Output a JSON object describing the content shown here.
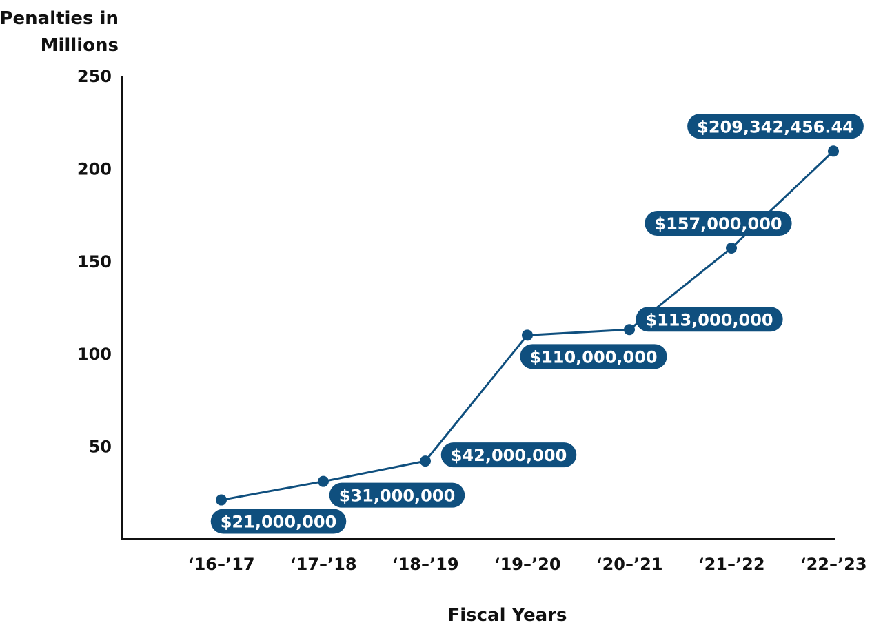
{
  "chart_data": {
    "type": "line",
    "ylabel": [
      "Penalties in",
      "Millions"
    ],
    "xlabel": "Fiscal Years",
    "categories": [
      "‘16–’17",
      "‘17–’18",
      "‘18–’19",
      "‘19–’20",
      "‘20–’21",
      "‘21–’22",
      "‘22–’23"
    ],
    "y_ticks": [
      50,
      100,
      150,
      200,
      250
    ],
    "ylim": [
      0,
      250
    ],
    "grid": false,
    "series": [
      {
        "values": [
          21,
          31,
          42,
          110,
          113,
          157,
          209.342
        ],
        "labels": [
          "$21,000,000",
          "$31,000,000",
          "$42,000,000",
          "$110,000,000",
          "$113,000,000",
          "$157,000,000",
          "$209,342,456.44"
        ]
      }
    ],
    "colors": {
      "line": "#0f4f7e",
      "label_bg": "#0f4f7e",
      "label_text": "#ffffff",
      "axis": "#111111"
    }
  }
}
